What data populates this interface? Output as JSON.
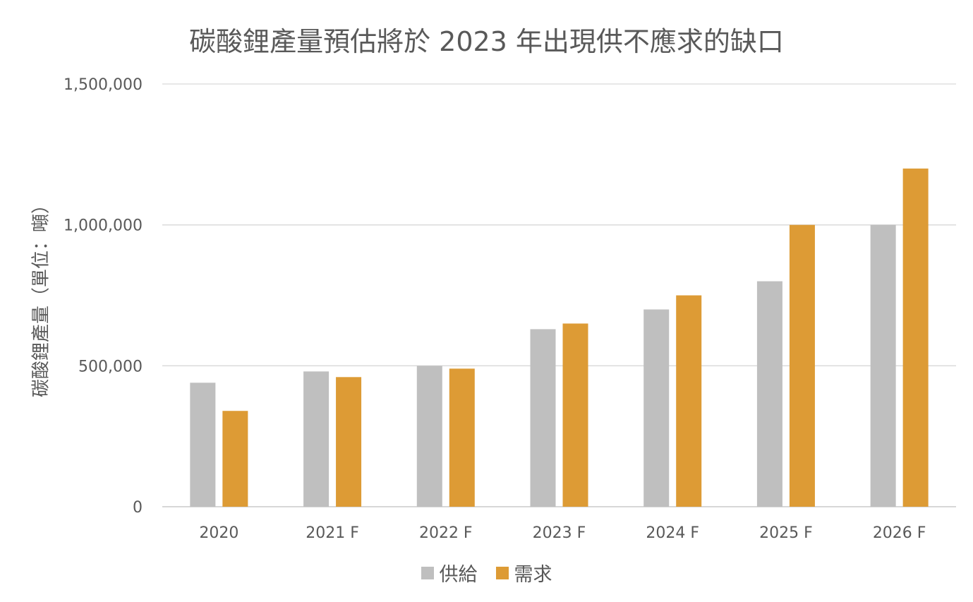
{
  "chart_data": {
    "type": "bar",
    "title": "碳酸鋰產量預估將於 2023 年出現供不應求的缺口",
    "xlabel": "",
    "ylabel": "碳酸鋰產量（單位：噸）",
    "ylim": [
      0,
      1500000
    ],
    "yticks": [
      0,
      500000,
      1000000,
      1500000
    ],
    "ytick_labels": [
      "0",
      "500,000",
      "1,000,000",
      "1,500,000"
    ],
    "grid": true,
    "legend_position": "bottom",
    "categories": [
      "2020",
      "2021 F",
      "2022 F",
      "2023 F",
      "2024 F",
      "2025 F",
      "2026 F"
    ],
    "series": [
      {
        "name": "供給",
        "color": "#bfbfbf",
        "values": [
          440000,
          480000,
          500000,
          630000,
          700000,
          800000,
          1000000
        ]
      },
      {
        "name": "需求",
        "color": "#dd9b35",
        "values": [
          340000,
          460000,
          490000,
          650000,
          750000,
          1000000,
          1200000
        ]
      }
    ]
  }
}
